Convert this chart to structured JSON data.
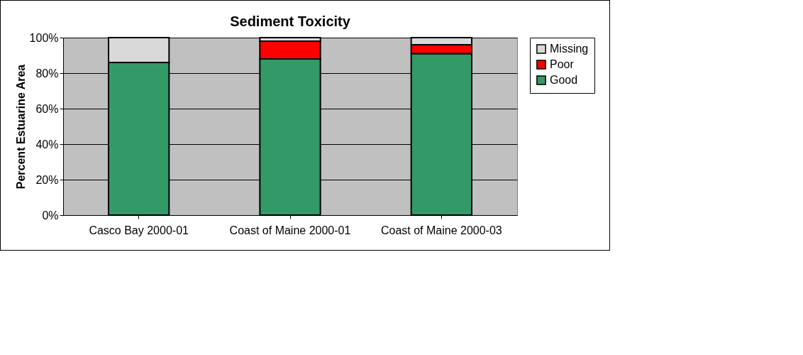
{
  "chart_data": {
    "type": "bar",
    "title": "Sediment Toxicity",
    "ylabel": "Percent Estuarine Area",
    "categories": [
      "Casco Bay 2000-01",
      "Coast of Maine 2000-01",
      "Coast of Maine 2000-03"
    ],
    "stacked": true,
    "series": [
      {
        "name": "Good",
        "color": "#339966",
        "values": [
          86,
          88,
          91
        ]
      },
      {
        "name": "Poor",
        "color": "#ff0000",
        "values": [
          0,
          10,
          5
        ]
      },
      {
        "name": "Missing",
        "color": "#d9d9d9",
        "values": [
          14,
          2,
          4
        ]
      }
    ],
    "ylim": [
      0,
      100
    ],
    "yticks": [
      {
        "value": 0,
        "label": "0%"
      },
      {
        "value": 20,
        "label": "20%"
      },
      {
        "value": 40,
        "label": "40%"
      },
      {
        "value": 60,
        "label": "60%"
      },
      {
        "value": 80,
        "label": "80%"
      },
      {
        "value": 100,
        "label": "100%"
      }
    ],
    "grid": "y",
    "legend": "right"
  }
}
